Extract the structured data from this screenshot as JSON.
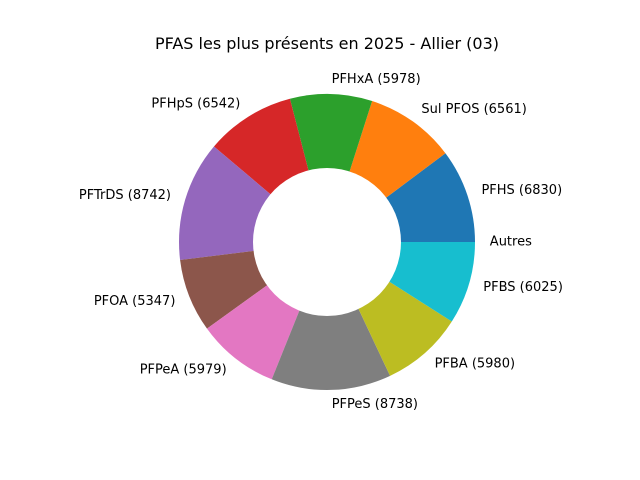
{
  "chart_data": {
    "type": "pie",
    "variant": "donut",
    "title": "PFAS les plus présents en 2025 - Allier (03)",
    "slices": [
      {
        "label": "PFHS (6830)",
        "value": 6830,
        "color": "#1f77b4"
      },
      {
        "label": "Sul PFOS (6561)",
        "value": 6561,
        "color": "#ff7f0e"
      },
      {
        "label": "PFHxA (5978)",
        "value": 5978,
        "color": "#2ca02c"
      },
      {
        "label": "PFHpS (6542)",
        "value": 6542,
        "color": "#d62728"
      },
      {
        "label": "PFTrDS (8742)",
        "value": 8742,
        "color": "#9467bd"
      },
      {
        "label": "PFOA (5347)",
        "value": 5347,
        "color": "#8c564b"
      },
      {
        "label": "PFPeA (5979)",
        "value": 5979,
        "color": "#e377c2"
      },
      {
        "label": "PFPeS (8738)",
        "value": 8738,
        "color": "#7f7f7f"
      },
      {
        "label": "PFBA (5980)",
        "value": 5980,
        "color": "#bcbd22"
      },
      {
        "label": "PFBS (6025)",
        "value": 6025,
        "color": "#17becf"
      },
      {
        "label": "Autres",
        "value": 0,
        "color": "#1f77b4"
      }
    ]
  }
}
